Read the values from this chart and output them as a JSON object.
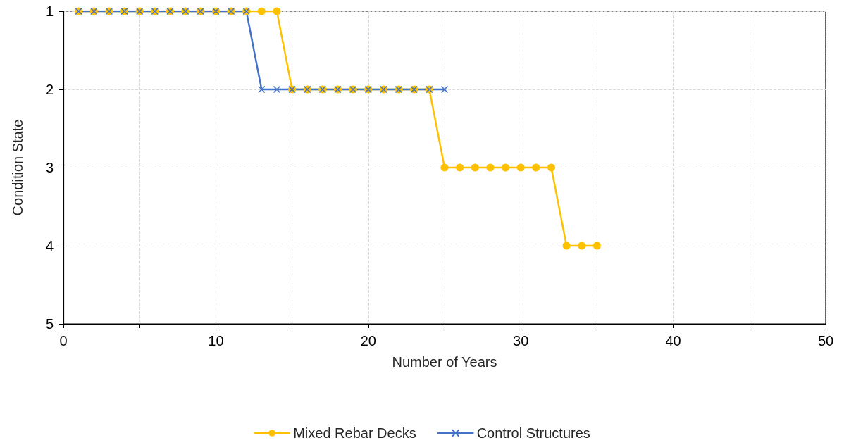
{
  "chart_data": {
    "type": "line",
    "xlabel": "Number of Years",
    "ylabel": "Condition State",
    "xlim": [
      0,
      50
    ],
    "xticks": [
      0,
      {
        "value": 5,
        "label": null
      },
      10,
      {
        "value": 15,
        "label": null
      },
      20,
      {
        "value": 25,
        "label": null
      },
      30,
      {
        "value": 35,
        "label": null
      },
      40,
      {
        "value": 45,
        "label": null
      },
      50
    ],
    "ylim": [
      5,
      1
    ],
    "yticks": [
      1,
      2,
      3,
      4,
      5
    ],
    "grid": true,
    "legend": "bottom",
    "line_style": "solid",
    "series": [
      {
        "name": "Mixed Rebar Decks",
        "color": "#ffc000",
        "marker": "circle",
        "x": [
          1,
          2,
          3,
          4,
          5,
          6,
          7,
          8,
          9,
          10,
          11,
          12,
          13,
          14,
          15,
          16,
          17,
          18,
          19,
          20,
          21,
          22,
          23,
          24,
          25,
          26,
          27,
          28,
          29,
          30,
          31,
          32,
          33,
          34,
          35
        ],
        "values": [
          1,
          1,
          1,
          1,
          1,
          1,
          1,
          1,
          1,
          1,
          1,
          1,
          1,
          1,
          2,
          2,
          2,
          2,
          2,
          2,
          2,
          2,
          2,
          2,
          3,
          3,
          3,
          3,
          3,
          3,
          3,
          3,
          4,
          4,
          4
        ]
      },
      {
        "name": "Control Structures",
        "color": "#4472c4",
        "marker": "cross",
        "x": [
          1,
          2,
          3,
          4,
          5,
          6,
          7,
          8,
          9,
          10,
          11,
          12,
          13,
          14,
          15,
          16,
          17,
          18,
          19,
          20,
          21,
          22,
          23,
          24,
          25
        ],
        "values": [
          1,
          1,
          1,
          1,
          1,
          1,
          1,
          1,
          1,
          1,
          1,
          1,
          2,
          2,
          2,
          2,
          2,
          2,
          2,
          2,
          2,
          2,
          2,
          2,
          2
        ]
      }
    ]
  }
}
